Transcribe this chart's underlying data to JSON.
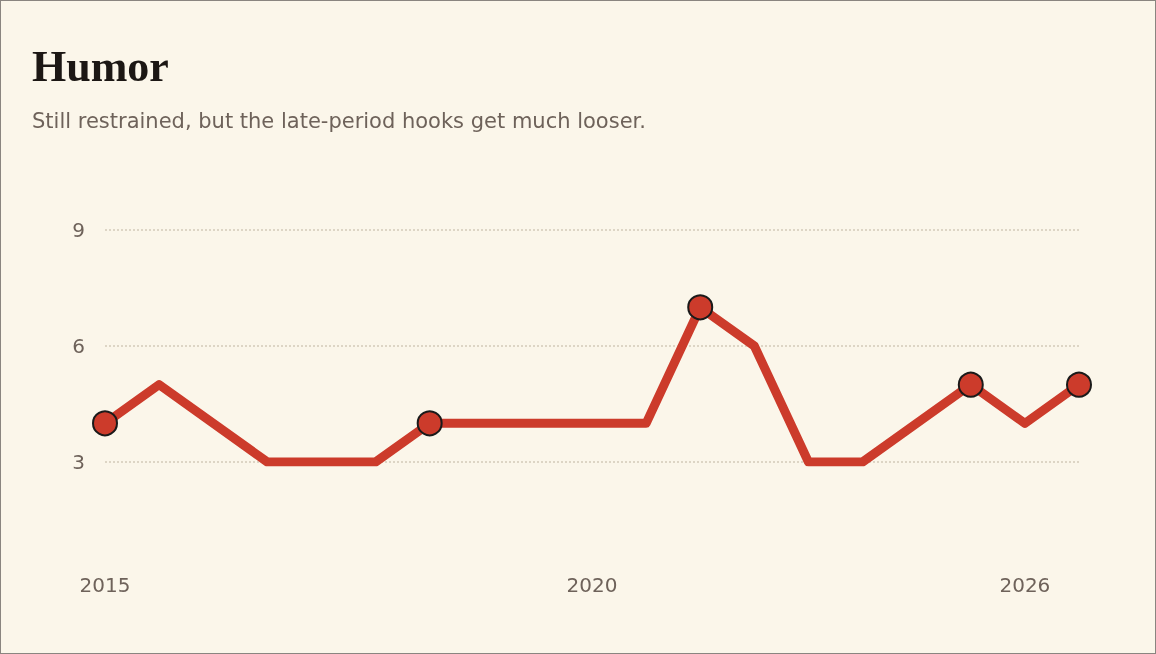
{
  "chart_data": {
    "type": "line",
    "title": "Humor",
    "subtitle": "Still restrained, but the late-period hooks get much looser.",
    "categories": [
      "2015",
      null,
      null,
      null,
      null,
      null,
      null,
      null,
      null,
      "2020",
      null,
      null,
      null,
      null,
      null,
      null,
      null,
      "2026",
      null
    ],
    "series": [
      {
        "color": "#cc3b2b",
        "marker": "none",
        "values": [
          4,
          5,
          null,
          3,
          null,
          3,
          4,
          null,
          null,
          null,
          4,
          7,
          6,
          3,
          3,
          null,
          5,
          4,
          5
        ]
      },
      {
        "type": "scatter",
        "color": "#cc3b2b",
        "marker": "circle",
        "values": [
          4,
          null,
          null,
          null,
          null,
          null,
          4,
          null,
          null,
          null,
          null,
          7,
          null,
          null,
          null,
          null,
          5,
          null,
          5
        ]
      }
    ],
    "ylim": [
      3,
      9
    ],
    "yticks": [
      3,
      6,
      9
    ],
    "grid": "y"
  }
}
